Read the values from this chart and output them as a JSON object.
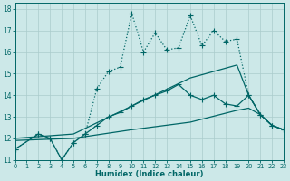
{
  "xlabel": "Humidex (Indice chaleur)",
  "bg_color": "#cce8e8",
  "grid_color": "#aacccc",
  "line_color": "#006666",
  "xlim": [
    0,
    23
  ],
  "ylim": [
    11,
    18.3
  ],
  "xticks": [
    0,
    1,
    2,
    3,
    4,
    5,
    6,
    7,
    8,
    9,
    10,
    11,
    12,
    13,
    14,
    15,
    16,
    17,
    18,
    19,
    20,
    21,
    22,
    23
  ],
  "yticks": [
    11,
    12,
    13,
    14,
    15,
    16,
    17,
    18
  ],
  "series": [
    {
      "x": [
        0,
        2,
        3,
        4,
        5,
        6,
        7,
        8,
        9,
        10,
        11,
        12,
        13,
        14,
        15,
        16,
        17,
        18,
        19,
        20,
        21,
        22,
        23
      ],
      "y": [
        11.5,
        12.2,
        12.0,
        11.0,
        11.8,
        12.2,
        14.3,
        15.1,
        15.3,
        17.8,
        16.0,
        16.9,
        16.1,
        16.2,
        17.7,
        16.3,
        17.0,
        16.5,
        16.6,
        14.0,
        13.1,
        12.6,
        12.4
      ],
      "linestyle": "dotted",
      "marker": "+",
      "markersize": 4,
      "linewidth": 0.9
    },
    {
      "x": [
        0,
        2,
        3,
        4,
        5,
        6,
        7,
        8,
        9,
        10,
        11,
        12,
        13,
        14,
        15,
        16,
        17,
        18,
        19,
        20,
        21,
        22,
        23
      ],
      "y": [
        11.5,
        12.2,
        12.0,
        11.0,
        11.8,
        12.2,
        12.6,
        13.0,
        13.2,
        13.5,
        13.8,
        14.0,
        14.2,
        14.5,
        14.0,
        13.8,
        14.0,
        13.6,
        13.5,
        14.0,
        13.1,
        12.6,
        12.4
      ],
      "linestyle": "solid",
      "marker": "+",
      "markersize": 4,
      "linewidth": 0.9
    },
    {
      "x": [
        0,
        5,
        10,
        15,
        19,
        20,
        21,
        22,
        23
      ],
      "y": [
        12.0,
        12.2,
        13.5,
        14.8,
        15.4,
        14.0,
        13.1,
        12.6,
        12.4
      ],
      "linestyle": "solid",
      "marker": null,
      "markersize": 0,
      "linewidth": 0.9
    },
    {
      "x": [
        0,
        5,
        10,
        15,
        19,
        20,
        21,
        22,
        23
      ],
      "y": [
        11.9,
        12.0,
        12.4,
        12.75,
        13.3,
        13.4,
        13.1,
        12.6,
        12.4
      ],
      "linestyle": "solid",
      "marker": null,
      "markersize": 0,
      "linewidth": 0.9
    }
  ]
}
